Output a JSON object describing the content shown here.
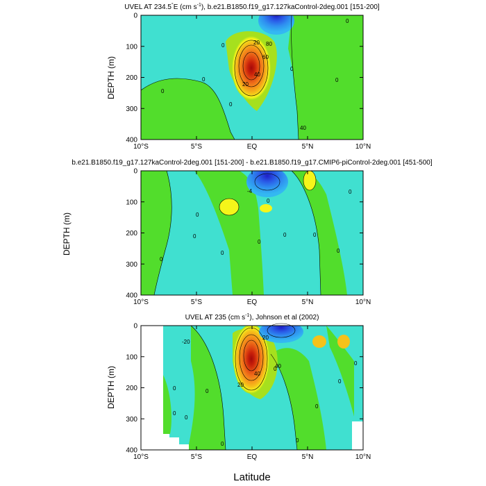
{
  "figure": {
    "shared_xlabel": "Latitude",
    "side_ylabel": "DEPTH (m)"
  },
  "palette": [
    "#1f1fc8",
    "#2a5ee8",
    "#2f8ff0",
    "#33b8f2",
    "#3fe0e8",
    "#40e0d0",
    "#3ccc5a",
    "#52dd2c",
    "#a6e01e",
    "#f5f51a",
    "#f5c21a",
    "#f59a1a",
    "#f0741a",
    "#e04a12",
    "#c8200a",
    "#a40a0a"
  ],
  "chart_data": [
    {
      "type": "contour",
      "title": "UVEL AT 234.5°E (cm s⁻¹), b.e21.B1850.f19_g17.127kaControl-2deg.001 [151-200]",
      "title_parts": [
        "UVEL AT 234.5",
        "°",
        "E (cm s",
        "-1",
        "), b.e21.B1850.f19_g17.127kaControl-2deg.001 [151-200]"
      ],
      "ylabel": "DEPTH (m)",
      "xlim": [
        -10,
        10
      ],
      "ylim": [
        0,
        400
      ],
      "x_ticks": [
        -10,
        -5,
        0,
        5,
        10
      ],
      "x_tick_labels": [
        "10°S",
        "5°S",
        "EQ",
        "5°N",
        "10°N"
      ],
      "y_ticks": [
        0,
        100,
        200,
        300,
        400
      ],
      "y_tick_labels": [
        "0",
        "100",
        "200",
        "300",
        "400"
      ],
      "contour_interval": 10,
      "contour_labels": [
        "0",
        "0",
        "0",
        "0",
        "0",
        "0",
        "0",
        "20",
        "40",
        "60",
        "80",
        "20",
        "40"
      ],
      "features": [
        {
          "kind": "jet",
          "name": "Equatorial Undercurrent",
          "x_center": -0.1,
          "depth_center": 115,
          "peak": 93,
          "x_halfwidth": 1.4,
          "depth_halfwidth": 60
        },
        {
          "kind": "current",
          "name": "South Equatorial Current",
          "x_center": 2.0,
          "depth_center": 15,
          "peak": -50,
          "x_halfwidth": 1.2,
          "depth_halfwidth": 35
        }
      ]
    },
    {
      "type": "contour",
      "title": "b.e21.B1850.f19_g17.127kaControl-2deg.001 [151-200] - b.e21.B1850.f19_g17.CMIP6-piControl-2deg.001 [451-500]",
      "ylabel": "",
      "xlim": [
        -10,
        10
      ],
      "ylim": [
        0,
        400
      ],
      "x_ticks": [
        -10,
        -5,
        0,
        5,
        10
      ],
      "x_tick_labels": [
        "10°S",
        "5°S",
        "EQ",
        "5°N",
        "10°N"
      ],
      "y_ticks": [
        0,
        100,
        200,
        300,
        400
      ],
      "y_tick_labels": [
        "0",
        "100",
        "200",
        "300",
        "400"
      ],
      "contour_interval": 2,
      "contour_labels": [
        "0",
        "0",
        "0",
        "0",
        "0",
        "0",
        "0",
        "0",
        "0",
        "-4",
        "0"
      ],
      "features": [
        {
          "kind": "difference",
          "name": "negative anomaly",
          "x_center": 2.2,
          "depth_center": 30,
          "peak": -14,
          "x_halfwidth": 1.2,
          "depth_halfwidth": 40
        },
        {
          "kind": "difference",
          "name": "positive anomaly",
          "x_center": -2.0,
          "depth_center": 110,
          "peak": 5,
          "x_halfwidth": 1.0,
          "depth_halfwidth": 25
        },
        {
          "kind": "difference",
          "name": "positive anomaly",
          "x_center": 5.0,
          "depth_center": 30,
          "peak": 5,
          "x_halfwidth": 0.8,
          "depth_halfwidth": 30
        }
      ]
    },
    {
      "type": "contour",
      "title": "UVEL AT 235 (cm s⁻¹), Johnson et al (2002)",
      "title_parts": [
        "UVEL AT 235 (cm s",
        "-1",
        "), Johnson et al (2002)"
      ],
      "ylabel": "DEPTH (m)",
      "xlim": [
        -10,
        10
      ],
      "ylim": [
        0,
        400
      ],
      "x_ticks": [
        -10,
        -5,
        0,
        5,
        10
      ],
      "x_tick_labels": [
        "10°S",
        "5°S",
        "EQ",
        "5°N",
        "10°N"
      ],
      "y_ticks": [
        0,
        100,
        200,
        300,
        400
      ],
      "y_tick_labels": [
        "0",
        "100",
        "200",
        "300",
        "400"
      ],
      "contour_interval": 10,
      "contour_labels": [
        "0",
        "0",
        "0",
        "0",
        "0",
        "0",
        "0",
        "0",
        "0",
        "0",
        "20",
        "40",
        "20",
        "40",
        "-20"
      ],
      "features": [
        {
          "kind": "jet",
          "name": "Equatorial Undercurrent",
          "x_center": -0.1,
          "depth_center": 95,
          "peak": 110,
          "x_halfwidth": 1.3,
          "depth_halfwidth": 70
        },
        {
          "kind": "current",
          "name": "South Equatorial Current",
          "x_center": 2.3,
          "depth_center": 10,
          "peak": -60,
          "x_halfwidth": 1.5,
          "depth_halfwidth": 35
        }
      ],
      "data_coverage": {
        "lat_range": [
          -8,
          10
        ],
        "missing": "white"
      }
    }
  ]
}
